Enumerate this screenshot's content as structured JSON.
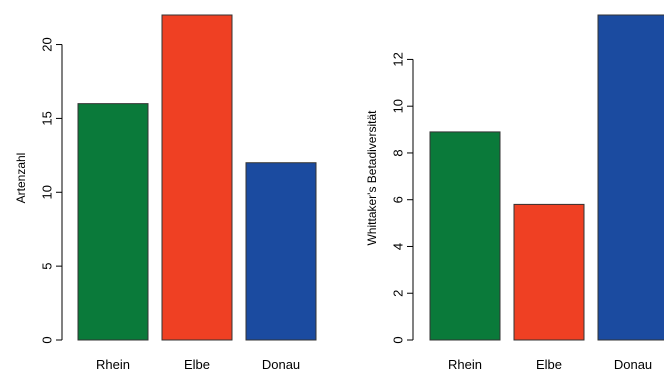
{
  "chart_data": [
    {
      "type": "bar",
      "categories": [
        "Rhein",
        "Elbe",
        "Donau"
      ],
      "values": [
        16,
        22,
        12
      ],
      "colors": [
        "#0a7a3a",
        "#ef4023",
        "#1b4ba0"
      ],
      "ylabel": "Artenzahl",
      "yticks": [
        0,
        5,
        10,
        15,
        20
      ],
      "ylim": [
        0,
        22
      ],
      "grid": false,
      "legend": "none"
    },
    {
      "type": "bar",
      "categories": [
        "Rhein",
        "Elbe",
        "Donau"
      ],
      "values": [
        8.9,
        5.8,
        13.9
      ],
      "colors": [
        "#0a7a3a",
        "#ef4023",
        "#1b4ba0"
      ],
      "ylabel": "Whittaker's Betadiversität",
      "yticks": [
        0,
        2,
        4,
        6,
        8,
        10,
        12
      ],
      "ylim": [
        0,
        13.9
      ],
      "grid": false,
      "legend": "none"
    }
  ]
}
